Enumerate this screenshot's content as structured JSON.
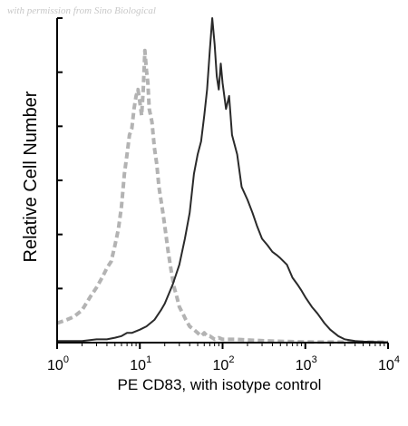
{
  "watermark": "with permission from Sino Biological",
  "chart_data": {
    "type": "line",
    "xlabel": "PE CD83, with isotype control",
    "ylabel": "Relative Cell Number",
    "x_scale": "log",
    "xlim": [
      1,
      10000
    ],
    "ylim": [
      0,
      100
    ],
    "x_ticks": [
      {
        "value": 1,
        "base": "10",
        "exp": "0"
      },
      {
        "value": 10,
        "base": "10",
        "exp": "1"
      },
      {
        "value": 100,
        "base": "10",
        "exp": "2"
      },
      {
        "value": 1000,
        "base": "10",
        "exp": "3"
      },
      {
        "value": 10000,
        "base": "10",
        "exp": "4"
      }
    ],
    "y_tick_count": 7,
    "grid": false,
    "series": [
      {
        "role": "isotype-control",
        "style": "dashed",
        "color": "#b3b3b3",
        "points": [
          [
            1,
            6
          ],
          [
            1.3,
            7
          ],
          [
            1.6,
            8
          ],
          [
            2,
            10
          ],
          [
            2.5,
            14
          ],
          [
            3,
            17
          ],
          [
            3.5,
            20
          ],
          [
            4,
            23
          ],
          [
            4.5,
            25
          ],
          [
            5,
            30
          ],
          [
            5.5,
            35
          ],
          [
            6,
            42
          ],
          [
            6.5,
            52
          ],
          [
            7,
            58
          ],
          [
            7.5,
            64
          ],
          [
            8,
            66
          ],
          [
            8.5,
            72
          ],
          [
            9,
            76
          ],
          [
            9.5,
            78
          ],
          [
            10,
            74
          ],
          [
            10.5,
            70
          ],
          [
            11,
            78
          ],
          [
            11.5,
            90
          ],
          [
            12,
            84
          ],
          [
            12.5,
            80
          ],
          [
            13,
            72
          ],
          [
            14,
            68
          ],
          [
            15,
            60
          ],
          [
            16,
            55
          ],
          [
            17,
            48
          ],
          [
            18,
            44
          ],
          [
            19,
            40
          ],
          [
            20,
            36
          ],
          [
            22,
            28
          ],
          [
            24,
            22
          ],
          [
            26,
            17
          ],
          [
            28,
            14
          ],
          [
            30,
            11
          ],
          [
            33,
            9
          ],
          [
            36,
            7
          ],
          [
            40,
            5
          ],
          [
            45,
            4
          ],
          [
            50,
            3
          ],
          [
            55,
            2
          ],
          [
            60,
            3
          ],
          [
            65,
            2
          ],
          [
            70,
            2
          ],
          [
            80,
            1
          ],
          [
            90,
            1.5
          ],
          [
            100,
            1
          ],
          [
            150,
            1
          ],
          [
            200,
            0.8
          ],
          [
            300,
            0.6
          ],
          [
            500,
            0.4
          ],
          [
            1000,
            0.2
          ],
          [
            10000,
            0.1
          ]
        ]
      },
      {
        "role": "CD83-PE",
        "style": "solid",
        "color": "#2a2a2a",
        "points": [
          [
            1,
            0.5
          ],
          [
            2,
            0.5
          ],
          [
            3,
            1
          ],
          [
            4,
            1
          ],
          [
            5,
            1.5
          ],
          [
            6,
            2
          ],
          [
            7,
            3
          ],
          [
            8,
            3
          ],
          [
            10,
            4
          ],
          [
            12,
            5
          ],
          [
            15,
            7
          ],
          [
            18,
            10
          ],
          [
            20,
            12
          ],
          [
            25,
            18
          ],
          [
            30,
            24
          ],
          [
            35,
            32
          ],
          [
            40,
            40
          ],
          [
            45,
            52
          ],
          [
            50,
            58
          ],
          [
            55,
            62
          ],
          [
            60,
            70
          ],
          [
            65,
            78
          ],
          [
            70,
            90
          ],
          [
            75,
            100
          ],
          [
            80,
            92
          ],
          [
            85,
            82
          ],
          [
            90,
            78
          ],
          [
            95,
            86
          ],
          [
            100,
            80
          ],
          [
            110,
            72
          ],
          [
            120,
            76
          ],
          [
            130,
            64
          ],
          [
            150,
            58
          ],
          [
            170,
            48
          ],
          [
            200,
            44
          ],
          [
            230,
            40
          ],
          [
            260,
            36
          ],
          [
            300,
            32
          ],
          [
            350,
            30
          ],
          [
            400,
            28
          ],
          [
            450,
            27
          ],
          [
            500,
            26
          ],
          [
            600,
            24
          ],
          [
            700,
            20
          ],
          [
            800,
            18
          ],
          [
            900,
            16
          ],
          [
            1000,
            14
          ],
          [
            1200,
            11
          ],
          [
            1400,
            9
          ],
          [
            1700,
            6
          ],
          [
            2000,
            4
          ],
          [
            2500,
            2
          ],
          [
            3000,
            1
          ],
          [
            4000,
            0.5
          ],
          [
            5000,
            0.3
          ],
          [
            7000,
            0.2
          ],
          [
            10000,
            0.1
          ]
        ]
      }
    ]
  }
}
